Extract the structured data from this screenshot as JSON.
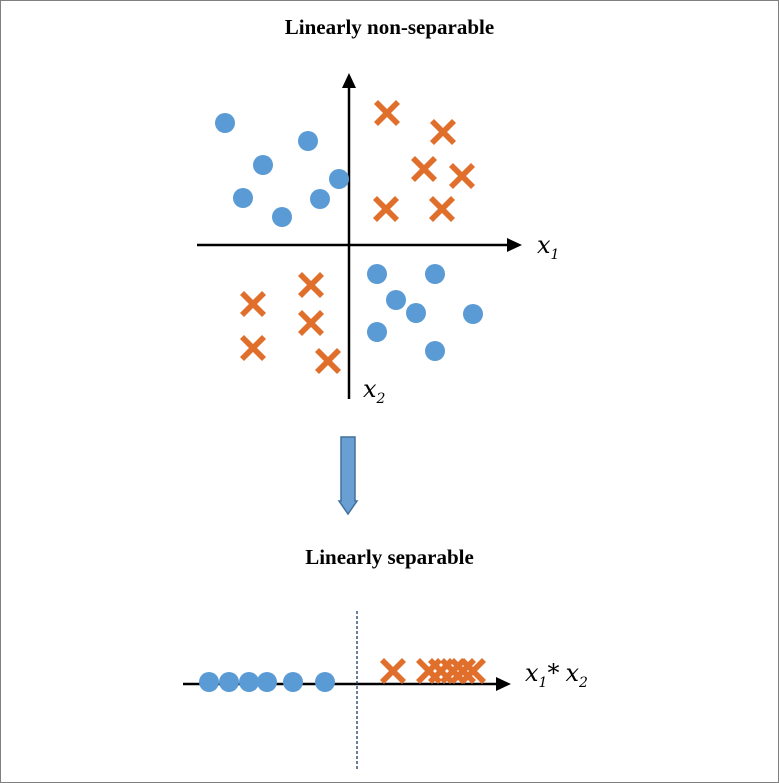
{
  "titles": {
    "top": "Linearly non-separable",
    "bottom": "Linearly separable"
  },
  "colors": {
    "circle": "#5b9bd5",
    "cross": "#e06f2c",
    "arrow_fill": "#6a9fd4",
    "arrow_stroke": "#41719c",
    "axis": "#000000"
  },
  "axes": {
    "top_x_label": {
      "base": "x",
      "sub": "1"
    },
    "top_y_label": {
      "base": "x",
      "sub": "2"
    },
    "bottom_label": {
      "base1": "x",
      "sub1": "1",
      "star": "*",
      "base2": "x",
      "sub2": "2"
    }
  },
  "classes": {
    "circle": "circle",
    "cross": "cross"
  }
}
